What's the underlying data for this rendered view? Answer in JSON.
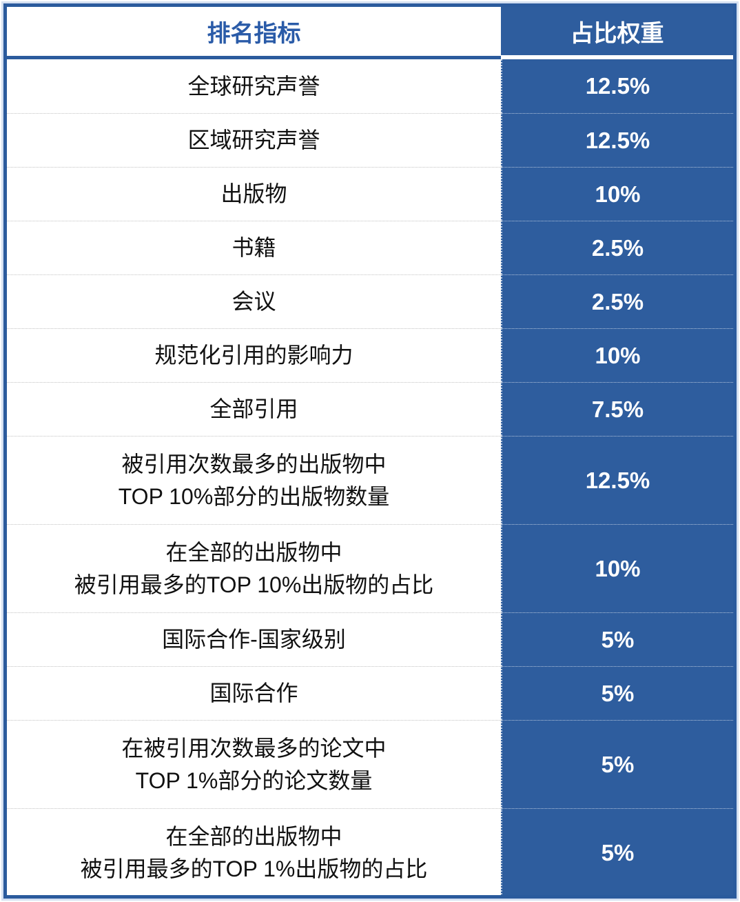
{
  "table": {
    "header": {
      "indicator": "排名指标",
      "weight": "占比权重"
    },
    "rows": [
      {
        "indicator_lines": [
          "全球研究声誉"
        ],
        "weight": "12.5%"
      },
      {
        "indicator_lines": [
          "区域研究声誉"
        ],
        "weight": "12.5%"
      },
      {
        "indicator_lines": [
          "出版物"
        ],
        "weight": "10%"
      },
      {
        "indicator_lines": [
          "书籍"
        ],
        "weight": "2.5%"
      },
      {
        "indicator_lines": [
          "会议"
        ],
        "weight": "2.5%"
      },
      {
        "indicator_lines": [
          "规范化引用的影响力"
        ],
        "weight": "10%"
      },
      {
        "indicator_lines": [
          "全部引用"
        ],
        "weight": "7.5%"
      },
      {
        "indicator_lines": [
          "被引用次数最多的出版物中",
          "TOP 10%部分的出版物数量"
        ],
        "weight": "12.5%"
      },
      {
        "indicator_lines": [
          "在全部的出版物中",
          "被引用最多的TOP 10%出版物的占比"
        ],
        "weight": "10%"
      },
      {
        "indicator_lines": [
          "国际合作-国家级别"
        ],
        "weight": "5%"
      },
      {
        "indicator_lines": [
          "国际合作"
        ],
        "weight": "5%"
      },
      {
        "indicator_lines": [
          "在被引用次数最多的论文中",
          "TOP 1%部分的论文数量"
        ],
        "weight": "5%"
      },
      {
        "indicator_lines": [
          "在全部的出版物中",
          "被引用最多的TOP 1%出版物的占比"
        ],
        "weight": "5%"
      }
    ],
    "colors": {
      "accent_blue": "#2e5d9e",
      "border_blue": "#2b5b9d",
      "header_text_blue": "#2a5ba8",
      "body_text": "#111111",
      "weight_text": "#ffffff",
      "separator_light": "#c2c2c2"
    }
  },
  "chart_data": {
    "type": "table",
    "columns": [
      "排名指标",
      "占比权重"
    ],
    "rows": [
      [
        "全球研究声誉",
        "12.5%"
      ],
      [
        "区域研究声誉",
        "12.5%"
      ],
      [
        "出版物",
        "10%"
      ],
      [
        "书籍",
        "2.5%"
      ],
      [
        "会议",
        "2.5%"
      ],
      [
        "规范化引用的影响力",
        "10%"
      ],
      [
        "全部引用",
        "7.5%"
      ],
      [
        "被引用次数最多的出版物中 TOP 10%部分的出版物数量",
        "12.5%"
      ],
      [
        "在全部的出版物中 被引用最多的TOP 10%出版物的占比",
        "10%"
      ],
      [
        "国际合作-国家级别",
        "5%"
      ],
      [
        "国际合作",
        "5%"
      ],
      [
        "在被引用次数最多的论文中 TOP 1%部分的论文数量",
        "5%"
      ],
      [
        "在全部的出版物中 被引用最多的TOP 1%出版物的占比",
        "5%"
      ]
    ]
  }
}
